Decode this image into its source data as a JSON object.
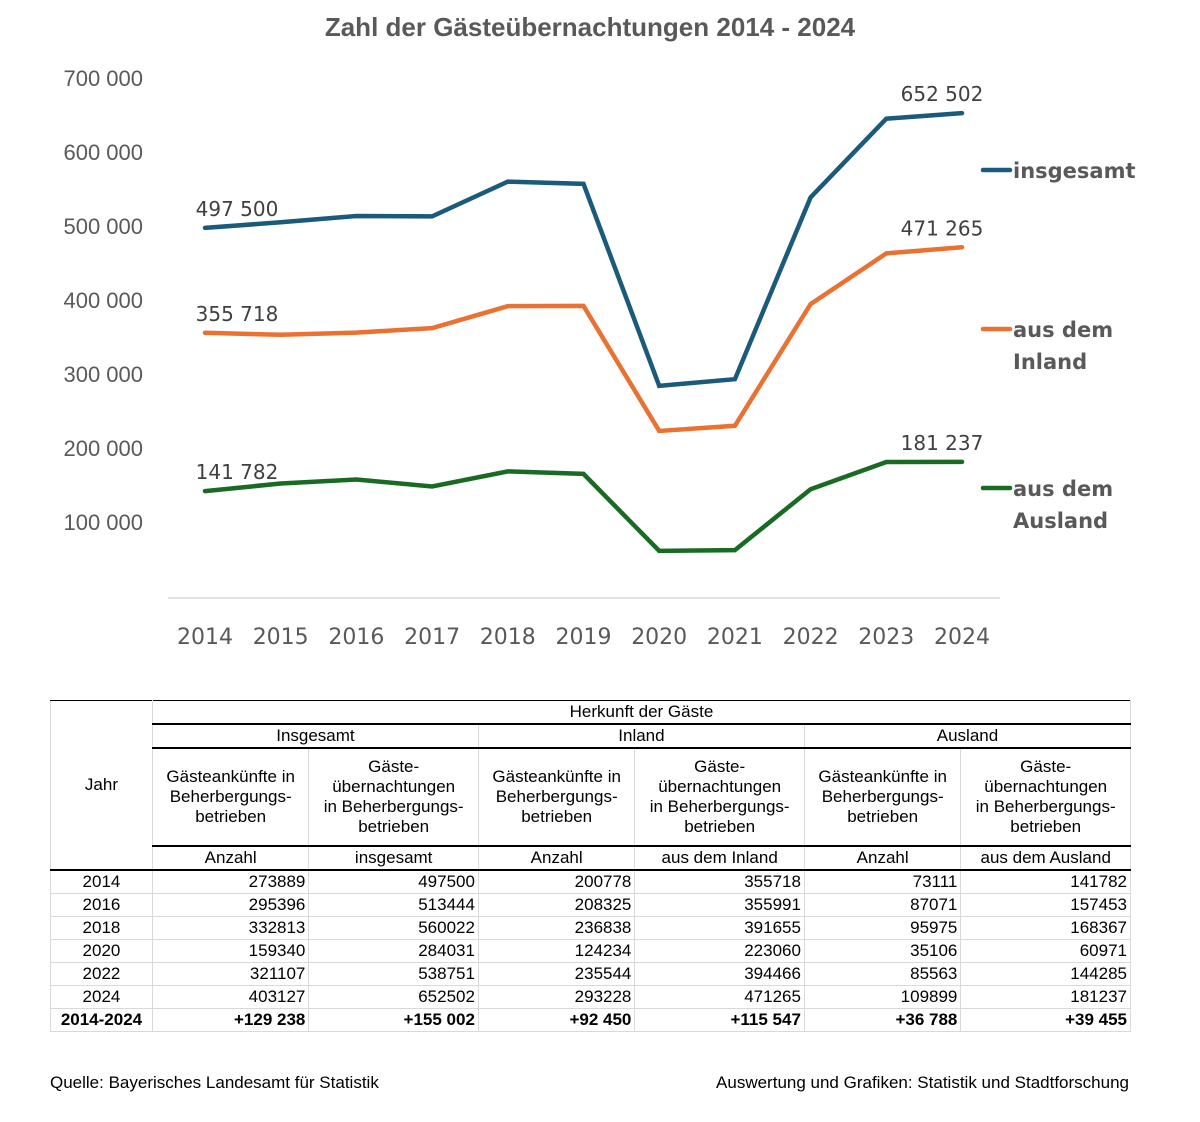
{
  "chart_data": {
    "type": "line",
    "title": "Zahl der Gästeübernachtungen 2014 - 2024",
    "xlabel": "",
    "ylabel": "",
    "ylim": [
      0,
      700000
    ],
    "y_ticks": [
      "100 000",
      "200 000",
      "300 000",
      "400 000",
      "500 000",
      "600 000",
      "700 000"
    ],
    "y_tick_values": [
      100000,
      200000,
      300000,
      400000,
      500000,
      600000,
      700000
    ],
    "x": [
      "2014",
      "2015",
      "2016",
      "2017",
      "2018",
      "2019",
      "2020",
      "2021",
      "2022",
      "2023",
      "2024"
    ],
    "grid": false,
    "legend_position": "right",
    "series": [
      {
        "name": "insgesamt",
        "legend_lines": [
          "insgesamt"
        ],
        "color": "#1a5a7a",
        "values": [
          497500,
          505000,
          513444,
          513000,
          560022,
          557000,
          284031,
          293000,
          538751,
          645000,
          652502
        ],
        "labels": [
          {
            "index": 0,
            "text": "497 500"
          },
          {
            "index": 10,
            "text": "652 502"
          }
        ]
      },
      {
        "name": "aus dem Inland",
        "legend_lines": [
          "aus dem",
          "Inland"
        ],
        "color": "#e97132",
        "values": [
          355718,
          353000,
          355991,
          362000,
          391655,
          392000,
          223060,
          230000,
          394466,
          463000,
          471265
        ],
        "labels": [
          {
            "index": 0,
            "text": "355 718"
          },
          {
            "index": 10,
            "text": "471 265"
          }
        ]
      },
      {
        "name": "aus dem Ausland",
        "legend_lines": [
          "aus dem",
          "Ausland"
        ],
        "color": "#196b24",
        "values": [
          141782,
          152000,
          157453,
          148000,
          168367,
          165000,
          60971,
          62000,
          144285,
          181000,
          181237
        ],
        "labels": [
          {
            "index": 0,
            "text": "141 782"
          },
          {
            "index": 10,
            "text": "181 237"
          }
        ]
      }
    ]
  },
  "table": {
    "jahr_header": "Jahr",
    "group_header": "Herkunft der Gäste",
    "groups": [
      "Insgesamt",
      "Inland",
      "Ausland"
    ],
    "col_headers": [
      "Gästeankünfte in Beherbergungs-betrieben",
      "Gäste-übernachtungen in Beherbergungs-betrieben",
      "Gästeankünfte in Beherbergungs-betrieben",
      "Gäste-übernachtungen in Beherbergungs-betrieben",
      "Gästeankünfte in Beherbergungs-betrieben",
      "Gäste-übernachtungen in Beherbergungs-betrieben"
    ],
    "col_header_lines": [
      [
        "Gästeankünfte in",
        "Beherbergungs-",
        "betrieben"
      ],
      [
        "Gäste-",
        "übernachtungen",
        "in Beherbergungs-",
        "betrieben"
      ],
      [
        "Gästeankünfte in",
        "Beherbergungs-",
        "betrieben"
      ],
      [
        "Gäste-",
        "übernachtungen",
        "in Beherbergungs-",
        "betrieben"
      ],
      [
        "Gästeankünfte in",
        "Beherbergungs-",
        "betrieben"
      ],
      [
        "Gäste-",
        "übernachtungen",
        "in Beherbergungs-",
        "betrieben"
      ]
    ],
    "units": [
      "Anzahl",
      "insgesamt",
      "Anzahl",
      "aus dem Inland",
      "Anzahl",
      "aus dem Ausland"
    ],
    "rows": [
      {
        "year": "2014",
        "values": [
          "273889",
          "497500",
          "200778",
          "355718",
          "73111",
          "141782"
        ]
      },
      {
        "year": "2016",
        "values": [
          "295396",
          "513444",
          "208325",
          "355991",
          "87071",
          "157453"
        ]
      },
      {
        "year": "2018",
        "values": [
          "332813",
          "560022",
          "236838",
          "391655",
          "95975",
          "168367"
        ]
      },
      {
        "year": "2020",
        "values": [
          "159340",
          "284031",
          "124234",
          "223060",
          "35106",
          "60971"
        ]
      },
      {
        "year": "2022",
        "values": [
          "321107",
          "538751",
          "235544",
          "394466",
          "85563",
          "144285"
        ]
      },
      {
        "year": "2024",
        "values": [
          "403127",
          "652502",
          "293228",
          "471265",
          "109899",
          "181237"
        ]
      }
    ],
    "total": {
      "year": "2014-2024",
      "values": [
        "+129 238",
        "+155 002",
        "+92 450",
        "+115 547",
        "+36 788",
        "+39 455"
      ]
    }
  },
  "footer": {
    "source": "Quelle: Bayerisches Landesamt für Statistik",
    "credit": "Auswertung und Grafiken: Statistik und Stadtforschung"
  }
}
